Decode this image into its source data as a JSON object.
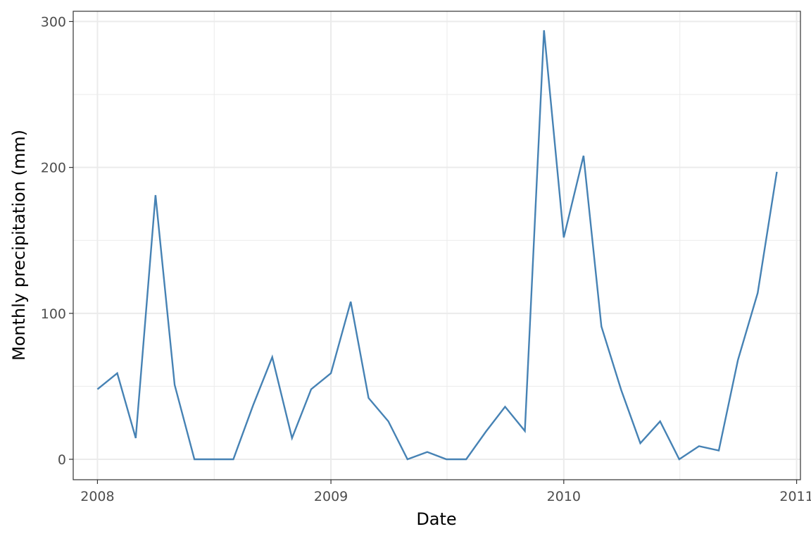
{
  "chart_data": {
    "type": "line",
    "title": "",
    "xlabel": "Date",
    "ylabel": "Monthly precipitation (mm)",
    "xlim": [
      "2007-11-24",
      "2011-01-07"
    ],
    "ylim": [
      -14,
      307
    ],
    "x_ticks": [
      "2008",
      "2009",
      "2010",
      "2011"
    ],
    "y_ticks": [
      0,
      100,
      200,
      300
    ],
    "grid": true,
    "line_color": "#4682b4",
    "series": [
      {
        "x": [
          "2008-01",
          "2008-02",
          "2008-03",
          "2008-04",
          "2008-05",
          "2008-06",
          "2008-07",
          "2008-08",
          "2008-09",
          "2008-10",
          "2008-11",
          "2008-12",
          "2009-01",
          "2009-02",
          "2009-03",
          "2009-04",
          "2009-05",
          "2009-06",
          "2009-07",
          "2009-08",
          "2009-09",
          "2009-10",
          "2009-11",
          "2009-12",
          "2010-01",
          "2010-02",
          "2010-03",
          "2010-04",
          "2010-05",
          "2010-06",
          "2010-07",
          "2010-08",
          "2010-09",
          "2010-10",
          "2010-11",
          "2010-12"
        ],
        "values": [
          48,
          59,
          14.5,
          181,
          51,
          0,
          0,
          0,
          37,
          70,
          14.5,
          48,
          59,
          108,
          42,
          26,
          0,
          5,
          0,
          0,
          19,
          36,
          19.4,
          294,
          152,
          208,
          91,
          47.5,
          11,
          26,
          0,
          9,
          6,
          68,
          114,
          197
        ]
      }
    ]
  }
}
